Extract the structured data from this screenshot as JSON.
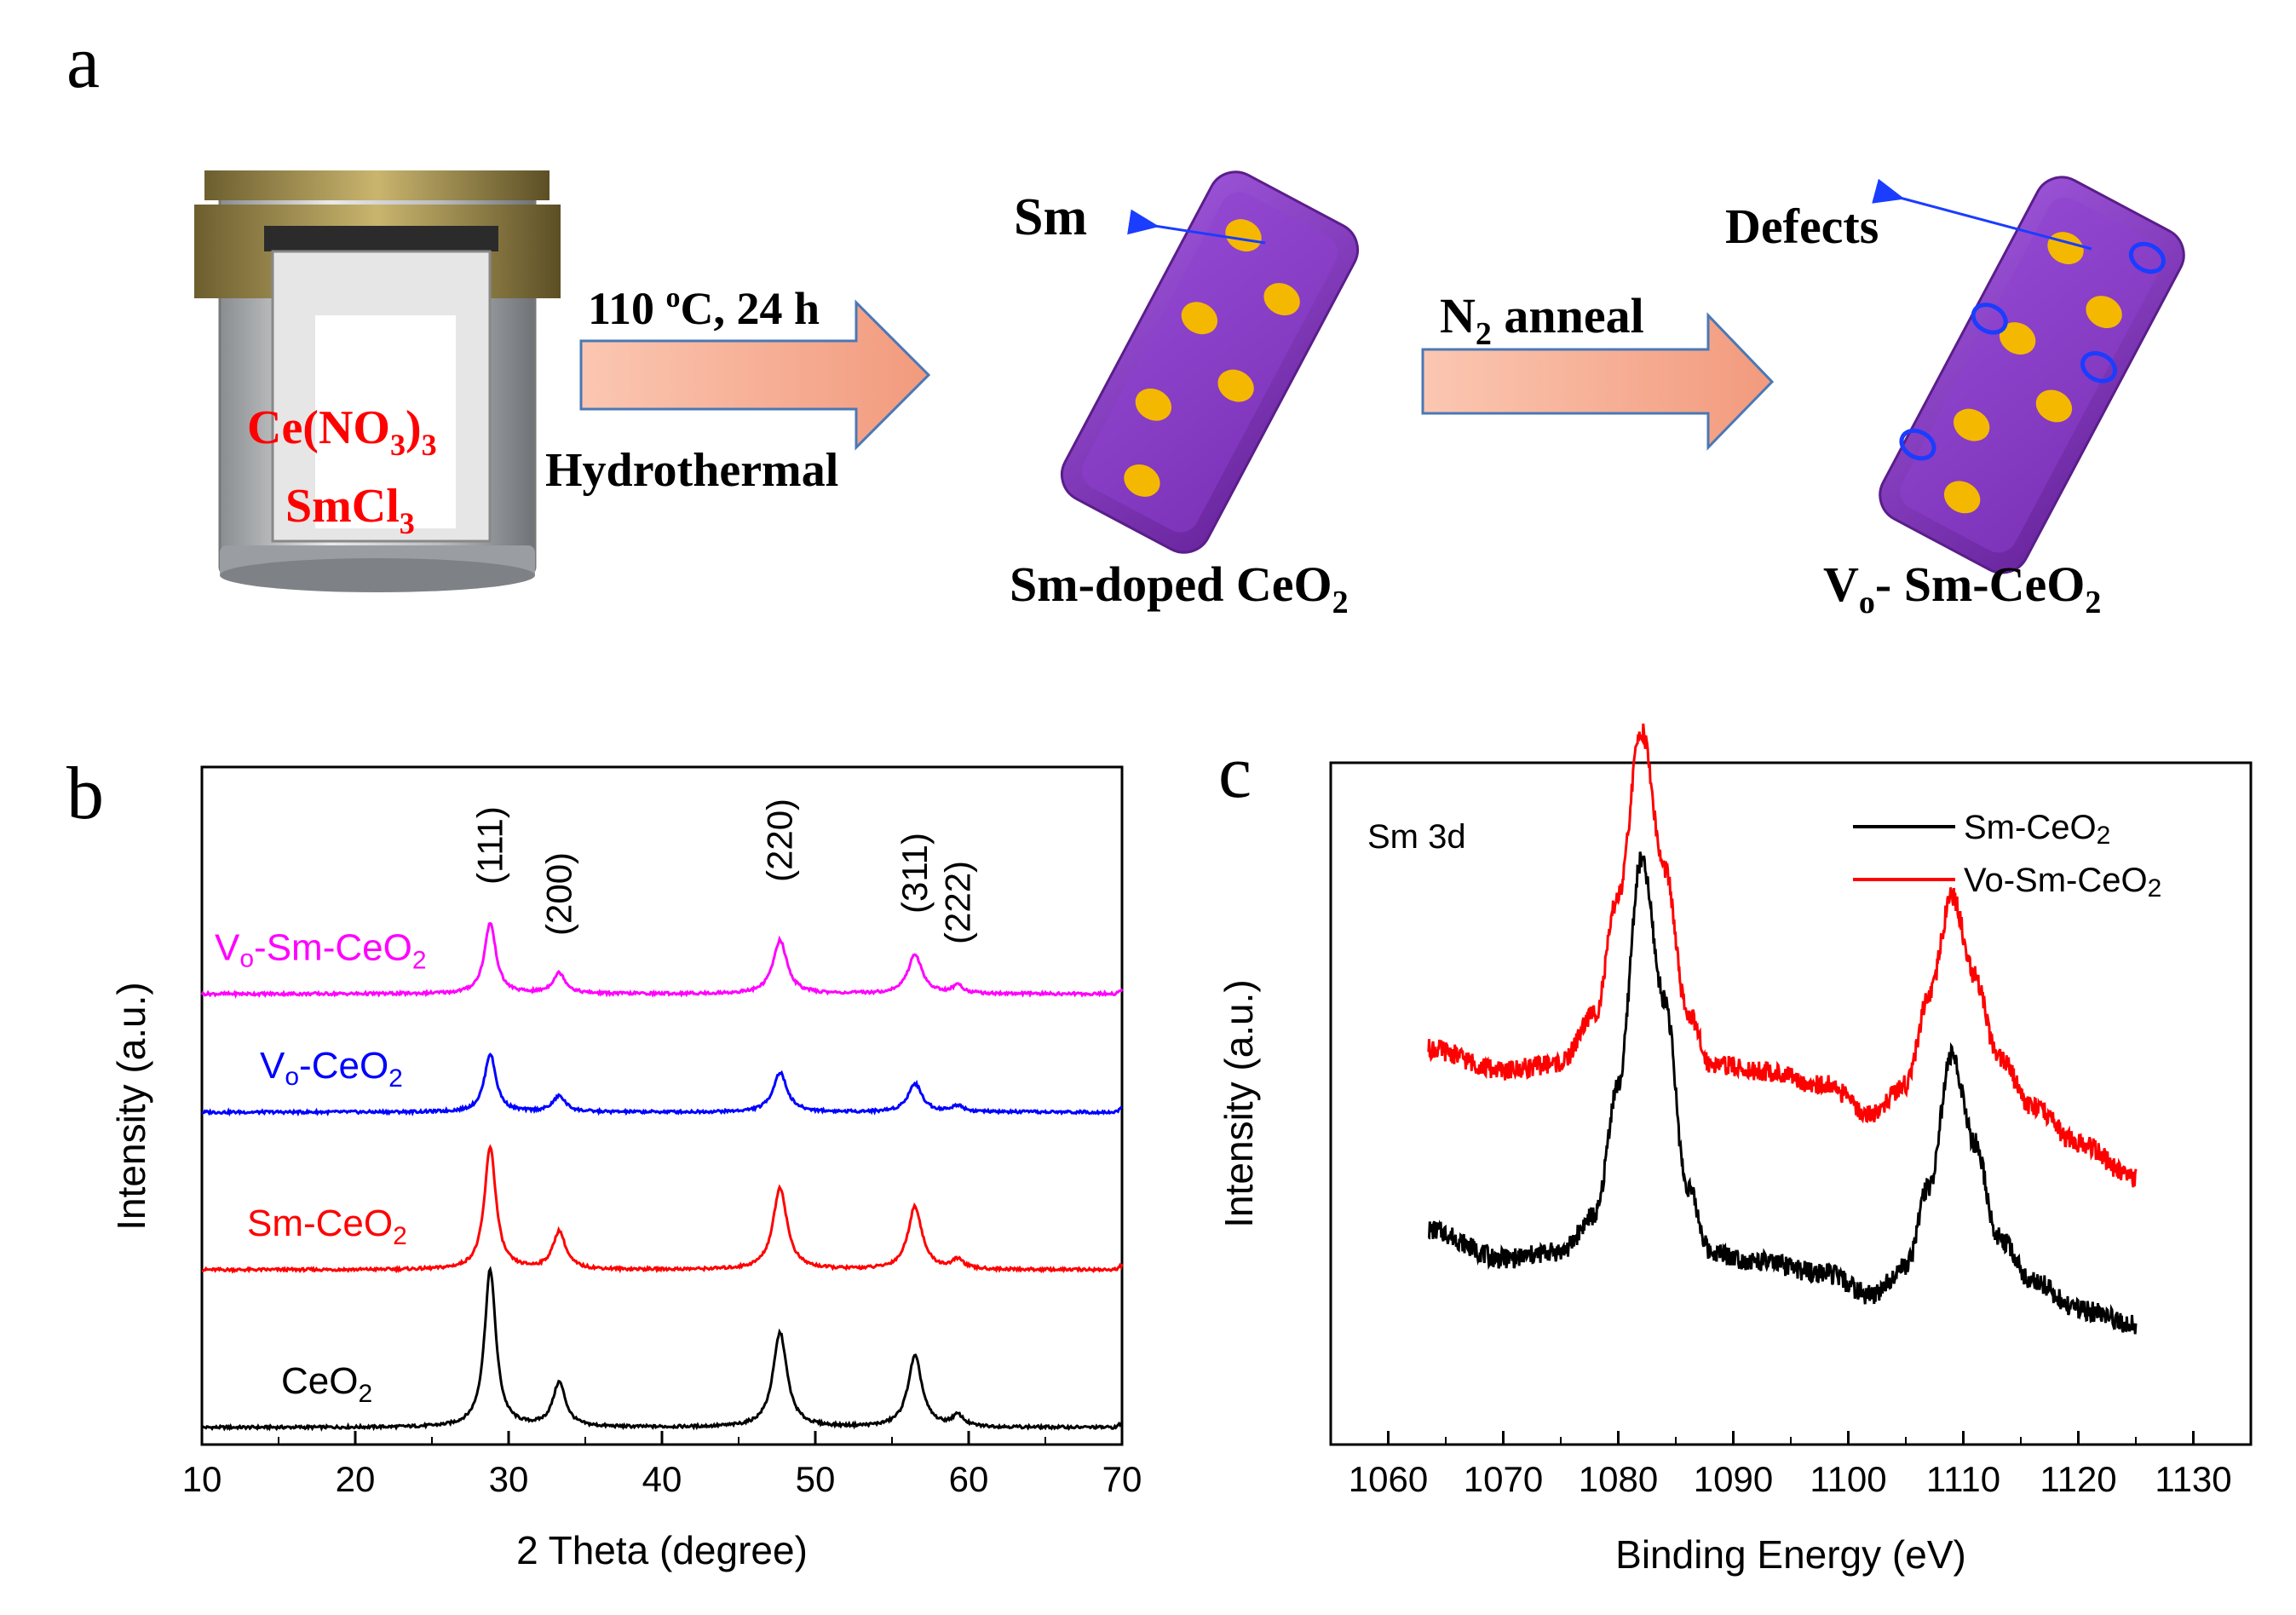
{
  "panel_a": {
    "letter": "a",
    "reagent_1": "Ce(NO",
    "reagent_1_sub": "3",
    "reagent_1_end": ")",
    "reagent_1_sub2": "3",
    "reagent_2": "SmCl",
    "reagent_2_sub": "3",
    "step1_condition": "110",
    "step1_sup": "o",
    "step1_condition_rest": "C, 24 h",
    "step1_method": "Hydrothermal",
    "step2_condition": "N",
    "step2_sub": "2",
    "step2_condition_rest": " anneal",
    "sm_label": "Sm",
    "product1": "Sm-doped CeO",
    "product1_sub": "2",
    "defects_label": "Defects",
    "product2_v": "V",
    "product2_v_sub": "o",
    "product2_rest": "- Sm-CeO",
    "product2_sub": "2",
    "colors": {
      "reagent": "#ff0000",
      "rod": "#7b2fb5",
      "dot": "#f5b800",
      "defect": "#1a3dff",
      "arrow_fill": "#f7a98a"
    }
  },
  "chart_data": [
    {
      "panel": "b",
      "type": "line",
      "xlabel": "2 Theta (degree)",
      "ylabel": "Intensity (a.u.)",
      "xlim": [
        10,
        70
      ],
      "xticks": [
        "10",
        "20",
        "30",
        "40",
        "50",
        "60",
        "70"
      ],
      "peak_positions": [
        28.8,
        33.3,
        47.7,
        56.5,
        59.3
      ],
      "peak_labels": [
        "(111)",
        "(200)",
        "(220)",
        "(311)",
        "(222)"
      ],
      "series": [
        {
          "name": "CeO2",
          "label": "CeO",
          "label_sub": "2",
          "color": "#000000",
          "baseline": 0.0,
          "peak_heights": [
            1.0,
            0.28,
            0.6,
            0.45,
            0.07
          ]
        },
        {
          "name": "Sm-CeO2",
          "label": "Sm-CeO",
          "label_sub": "2",
          "color": "#ff0000",
          "baseline": 1.0,
          "peak_heights": [
            0.78,
            0.24,
            0.52,
            0.4,
            0.06
          ]
        },
        {
          "name": "Vo-CeO2",
          "label": "V",
          "label_vsub": "o",
          "label_rest": "-CeO",
          "label_sub": "2",
          "color": "#0000ff",
          "baseline": 2.0,
          "peak_heights": [
            0.37,
            0.1,
            0.25,
            0.18,
            0.04
          ]
        },
        {
          "name": "Vo-Sm-CeO2",
          "label": "V",
          "label_vsub": "o",
          "label_rest": "-Sm-CeO",
          "label_sub": "2",
          "color": "#ff00ff",
          "baseline": 2.75,
          "peak_heights": [
            0.45,
            0.13,
            0.34,
            0.25,
            0.05
          ]
        }
      ]
    },
    {
      "panel": "c",
      "type": "line",
      "annotation": "Sm 3d",
      "xlabel": "Binding Energy (eV)",
      "ylabel": "Intensity (a.u.)",
      "xlim": [
        1055,
        1135
      ],
      "xticks": [
        "1060",
        "1070",
        "1080",
        "1090",
        "1100",
        "1110",
        "1120",
        "1130"
      ],
      "legend_position": "top-right",
      "series": [
        {
          "name": "Sm-CeO2",
          "label": "Sm-CeO",
          "label_sub": "2",
          "color": "#000000",
          "x": [
            1063.5,
            1070,
            1075,
            1078,
            1080,
            1082,
            1084,
            1086,
            1088,
            1092,
            1098,
            1102,
            1105,
            1107,
            1109,
            1111,
            1113,
            1116,
            1120,
            1125
          ],
          "y": [
            0.6,
            0.4,
            0.45,
            0.7,
            1.6,
            3.15,
            2.2,
            0.9,
            0.45,
            0.38,
            0.3,
            0.15,
            0.35,
            0.9,
            1.8,
            1.2,
            0.55,
            0.25,
            0.05,
            -0.05
          ]
        },
        {
          "name": "Vo-Sm-CeO2",
          "label": "Vo-Sm-CeO",
          "label_sub": "2",
          "color": "#ff0000",
          "x": [
            1063.5,
            1070,
            1075,
            1078,
            1080,
            1082,
            1084,
            1086,
            1088,
            1092,
            1098,
            1102,
            1105,
            1107,
            1109,
            1111,
            1113,
            1116,
            1120,
            1125
          ],
          "y": [
            1.85,
            1.7,
            1.75,
            2.1,
            2.9,
            4.05,
            3.1,
            2.1,
            1.75,
            1.7,
            1.6,
            1.4,
            1.6,
            2.2,
            2.9,
            2.35,
            1.8,
            1.45,
            1.2,
            0.95
          ]
        }
      ]
    }
  ]
}
